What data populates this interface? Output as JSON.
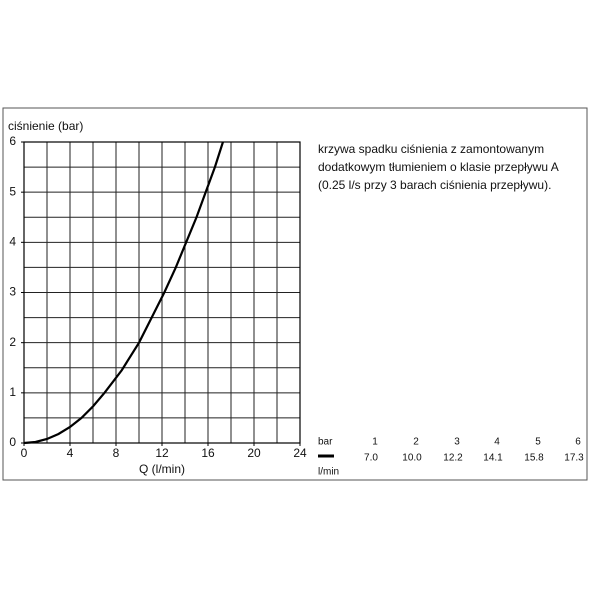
{
  "chart_data": {
    "type": "line",
    "ylabel": "ciśnienie (bar)",
    "xlabel": "Q (l/min)",
    "annotation": [
      "krzywa spadku ciśnienia z zamontowanym",
      "dodatkowym tłumieniem o klasie przepływu A",
      "(0.25 l/s przy 3 barach ciśnienia przepływu)."
    ],
    "x": [
      0,
      1,
      2,
      3,
      4,
      5,
      6,
      7.0,
      8.5,
      10.0,
      11.1,
      12.2,
      13.2,
      14.1,
      15.0,
      15.8,
      16.6,
      17.3
    ],
    "series": [
      {
        "color": "#000000",
        "values": [
          0,
          0.02,
          0.08,
          0.18,
          0.32,
          0.5,
          0.73,
          1,
          1.45,
          2,
          2.5,
          3,
          3.5,
          4,
          4.5,
          5,
          5.5,
          6
        ]
      }
    ],
    "xlim": [
      0,
      24
    ],
    "ylim": [
      0,
      6
    ],
    "xticks": [
      0,
      4,
      8,
      12,
      16,
      20,
      24
    ],
    "yticks": [
      0,
      1,
      2,
      3,
      4,
      5,
      6
    ],
    "x_gridlines": [
      2,
      4,
      6,
      8,
      10,
      12,
      14,
      16,
      18,
      20,
      22
    ],
    "y_gridlines": [
      0.5,
      1,
      1.5,
      2,
      2.5,
      3,
      3.5,
      4,
      4.5,
      5,
      5.5
    ],
    "grid": true,
    "table": {
      "row_labels": [
        "bar",
        "l/min"
      ],
      "bar": [
        1,
        2,
        3,
        4,
        5,
        6
      ],
      "flow": [
        "7.0",
        "10.0",
        "12.2",
        "14.1",
        "15.8",
        "17.3"
      ]
    }
  }
}
